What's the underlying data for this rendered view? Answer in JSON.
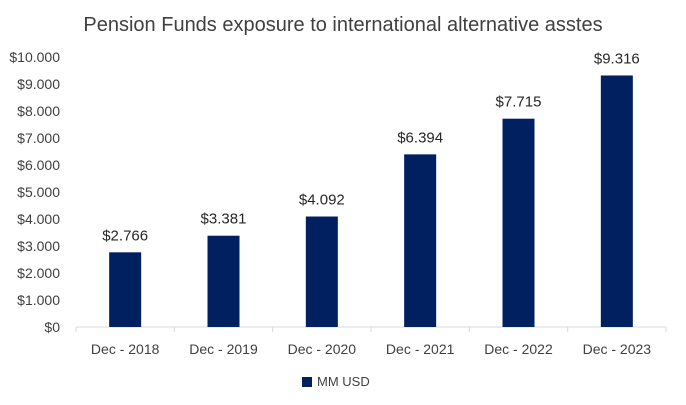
{
  "chart_data": {
    "type": "bar",
    "title": "Pension Funds exposure to international alternative asstes",
    "categories": [
      "Dec - 2018",
      "Dec - 2019",
      "Dec - 2020",
      "Dec - 2021",
      "Dec - 2022",
      "Dec - 2023"
    ],
    "series": [
      {
        "name": "MM USD",
        "values": [
          2.766,
          3.381,
          4.092,
          6.394,
          7.715,
          9.316
        ],
        "color": "#002060"
      }
    ],
    "data_labels": [
      "$2.766",
      "$3.381",
      "$4.092",
      "$6.394",
      "$7.715",
      "$9.316"
    ],
    "y_ticks": [
      "$0",
      "$1.000",
      "$2.000",
      "$3.000",
      "$4.000",
      "$5.000",
      "$6.000",
      "$7.000",
      "$8.000",
      "$9.000",
      "$10.000"
    ],
    "ylim": [
      0,
      10
    ],
    "grid": false,
    "legend_position": "bottom"
  }
}
